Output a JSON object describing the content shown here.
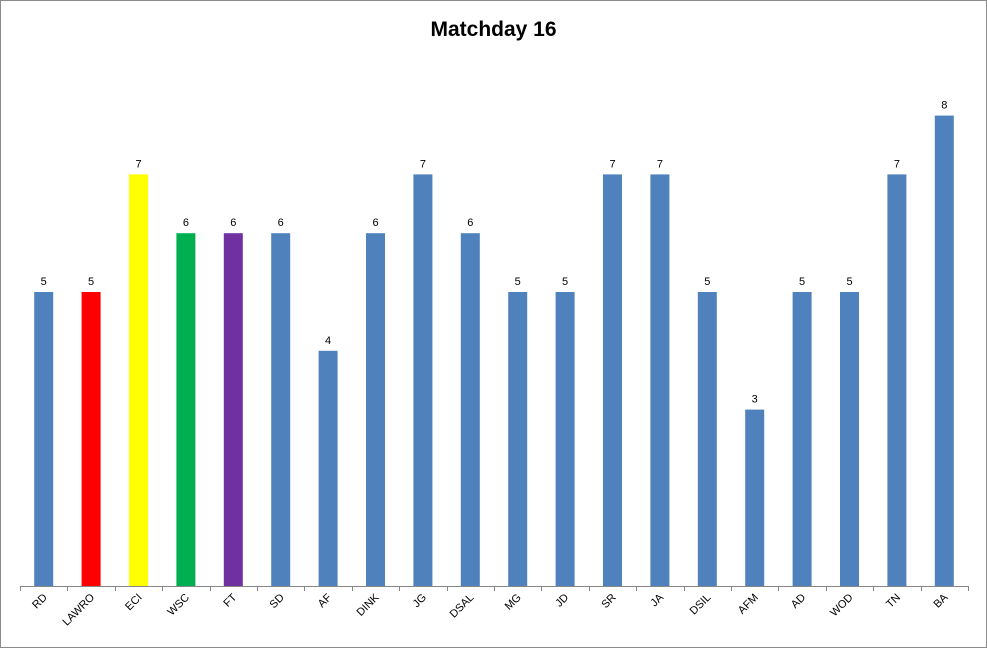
{
  "chart_data": {
    "type": "bar",
    "title": "Matchday 16",
    "xlabel": "",
    "ylabel": "",
    "ylim": [
      0,
      10
    ],
    "grid": false,
    "legend": "none",
    "default_color": "#4F81BD",
    "categories": [
      "RD",
      "LAWRO",
      "ECI",
      "WSC",
      "FT",
      "SD",
      "AF",
      "DINK",
      "JG",
      "DSAL",
      "MG",
      "JD",
      "SR",
      "JA",
      "DSIL",
      "AFM",
      "AD",
      "WOD",
      "TN",
      "BA"
    ],
    "values": [
      5,
      5,
      7,
      6,
      6,
      6,
      4,
      6,
      7,
      6,
      5,
      5,
      7,
      7,
      5,
      3,
      5,
      5,
      7,
      8
    ],
    "colors": [
      "#4F81BD",
      "#FF0000",
      "#FFFF00",
      "#00B050",
      "#7030A0",
      "#4F81BD",
      "#4F81BD",
      "#4F81BD",
      "#4F81BD",
      "#4F81BD",
      "#4F81BD",
      "#4F81BD",
      "#4F81BD",
      "#4F81BD",
      "#4F81BD",
      "#4F81BD",
      "#4F81BD",
      "#4F81BD",
      "#4F81BD",
      "#4F81BD"
    ],
    "data_labels": true
  }
}
